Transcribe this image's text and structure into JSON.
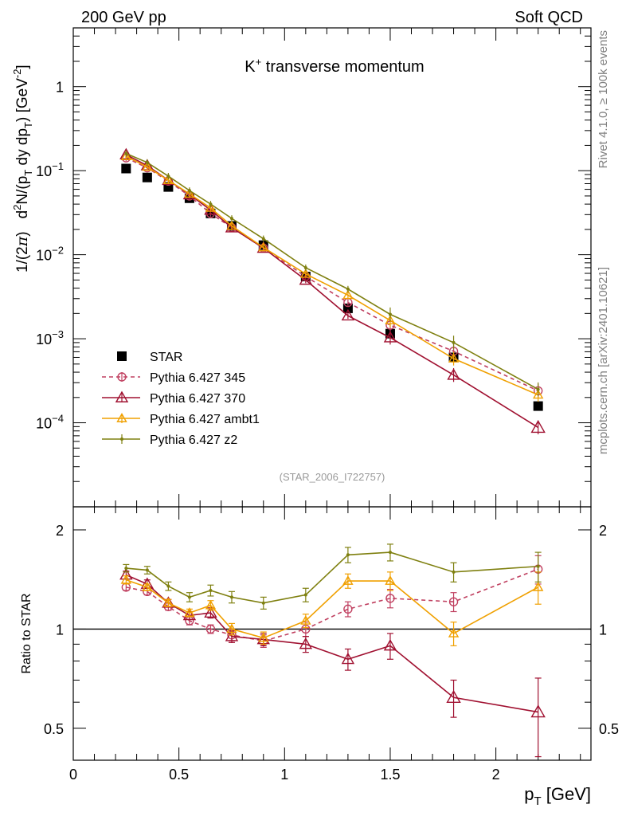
{
  "header": {
    "left": "200 GeV pp",
    "right": "Soft QCD"
  },
  "title": {
    "main": "K",
    "sup": "+",
    "rest": " transverse momentum"
  },
  "ylabel": {
    "a": "1/(2",
    "pi": "π",
    "b": ")",
    "c": "d",
    "sup2": "2",
    "d": "N/(p",
    "subT1": "T",
    "e": " dy dp",
    "subT2": "T",
    "f": ") [GeV",
    "supm2": "-2",
    "g": "]"
  },
  "ratio_ylabel": "Ratio to STAR",
  "xlabel": {
    "p": "p",
    "sub": "T",
    "unit": " [GeV]"
  },
  "side_texts": {
    "rivet": "Rivet 4.1.0, ≥ 100k events",
    "mcplots": "mcplots.cern.ch [arXiv:2401.10621]"
  },
  "analysis_tag": "(STAR_2006_I722757)",
  "colors": {
    "star": "#000000",
    "p345": "#c04060",
    "p370": "#a01030",
    "ambt1": "#f0a000",
    "z2": "#7f8010"
  },
  "chart_data": [
    {
      "type": "scatter",
      "panel": "main",
      "title": "K+ transverse momentum",
      "xlabel": "pT [GeV]",
      "ylabel": "1/(2π) d2N/(pT dy dpT) [GeV^-2]",
      "yscale": "log",
      "xlim": [
        0,
        2.45
      ],
      "ylim": [
        1e-05,
        5
      ],
      "y_tick_labels": [
        "10^-4",
        "10^-3",
        "10^-2",
        "10^-1",
        "1"
      ],
      "x": [
        0.25,
        0.35,
        0.45,
        0.55,
        0.65,
        0.75,
        0.9,
        1.1,
        1.3,
        1.5,
        1.8,
        2.2
      ],
      "series": [
        {
          "name": "STAR",
          "key": "star",
          "marker": "square",
          "line": "none",
          "values": [
            0.106,
            0.083,
            0.064,
            0.047,
            0.031,
            0.022,
            0.013,
            0.0055,
            0.0023,
            0.00115,
            0.0006,
            0.000158
          ]
        },
        {
          "name": "Pythia 6.427 345",
          "key": "p345",
          "marker": "open-circle",
          "line": "dashed",
          "values": [
            0.142,
            0.108,
            0.075,
            0.05,
            0.031,
            0.021,
            0.012,
            0.0055,
            0.0027,
            0.00145,
            0.00071,
            0.00024
          ]
        },
        {
          "name": "Pythia 6.427 370",
          "key": "p370",
          "marker": "open-triangle",
          "line": "solid",
          "values": [
            0.155,
            0.115,
            0.077,
            0.052,
            0.034,
            0.021,
            0.012,
            0.005,
            0.00188,
            0.00103,
            0.00037,
            8.8e-05
          ]
        },
        {
          "name": "Pythia 6.427 ambt1",
          "key": "ambt1",
          "marker": "open-triangle-small",
          "line": "solid",
          "values": [
            0.148,
            0.111,
            0.077,
            0.053,
            0.036,
            0.022,
            0.0122,
            0.0059,
            0.0033,
            0.00165,
            0.00058,
            0.000215
          ]
        },
        {
          "name": "Pythia 6.427 z2",
          "key": "z2",
          "marker": "dot",
          "line": "solid",
          "values": [
            0.16,
            0.125,
            0.086,
            0.058,
            0.04,
            0.027,
            0.0155,
            0.007,
            0.0039,
            0.00195,
            0.0009,
            0.00025
          ]
        }
      ]
    },
    {
      "type": "line",
      "panel": "ratio",
      "ylabel": "Ratio to STAR",
      "xlabel": "pT [GeV]",
      "yscale": "log",
      "xlim": [
        0,
        2.45
      ],
      "ylim": [
        0.4,
        2.35
      ],
      "y_ticks": [
        0.5,
        1,
        2
      ],
      "y_tick_labels": [
        "0.5",
        "1",
        "2"
      ],
      "x_ticks": [
        0,
        0.5,
        1,
        1.5,
        2
      ],
      "x_tick_labels": [
        "0",
        "0.5",
        "1",
        "1.5",
        "2"
      ],
      "reference": 1,
      "x": [
        0.25,
        0.35,
        0.45,
        0.55,
        0.65,
        0.75,
        0.9,
        1.1,
        1.3,
        1.5,
        1.8,
        2.2
      ],
      "series": [
        {
          "name": "Pythia 6.427 345",
          "key": "p345",
          "values": [
            1.34,
            1.3,
            1.17,
            1.06,
            1.0,
            0.96,
            0.92,
            1.0,
            1.15,
            1.24,
            1.21,
            1.52
          ],
          "errors": [
            0.03,
            0.03,
            0.03,
            0.03,
            0.03,
            0.04,
            0.04,
            0.05,
            0.06,
            0.08,
            0.08,
            0.15
          ]
        },
        {
          "name": "Pythia 6.427 370",
          "key": "p370",
          "values": [
            1.46,
            1.37,
            1.2,
            1.1,
            1.12,
            0.95,
            0.93,
            0.9,
            0.81,
            0.89,
            0.62,
            0.56
          ],
          "errors": [
            0.04,
            0.04,
            0.03,
            0.03,
            0.04,
            0.04,
            0.04,
            0.05,
            0.06,
            0.08,
            0.08,
            0.15
          ]
        },
        {
          "name": "Pythia 6.427 ambt1",
          "key": "ambt1",
          "values": [
            1.41,
            1.34,
            1.2,
            1.12,
            1.18,
            1.0,
            0.94,
            1.06,
            1.4,
            1.4,
            0.97,
            1.34
          ],
          "errors": [
            0.04,
            0.03,
            0.03,
            0.03,
            0.04,
            0.04,
            0.04,
            0.05,
            0.07,
            0.09,
            0.08,
            0.15
          ]
        },
        {
          "name": "Pythia 6.427 z2",
          "key": "z2",
          "values": [
            1.53,
            1.51,
            1.35,
            1.25,
            1.31,
            1.25,
            1.2,
            1.27,
            1.68,
            1.71,
            1.49,
            1.55
          ],
          "errors": [
            0.04,
            0.04,
            0.04,
            0.04,
            0.05,
            0.05,
            0.05,
            0.06,
            0.09,
            0.1,
            0.1,
            0.16
          ]
        }
      ]
    }
  ]
}
